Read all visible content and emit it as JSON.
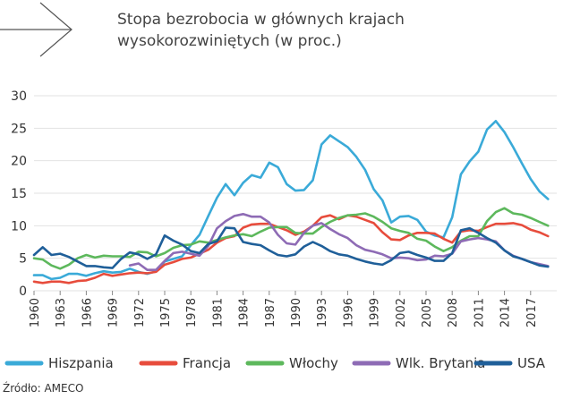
{
  "title": {
    "line1": "Stopa bezrobocia w głównych krajach",
    "line2": "wysokorozwiniętych (w proc.)"
  },
  "source": "Źródło: AMECO",
  "chart_data": {
    "type": "line",
    "title": "Stopa bezrobocia w głównych krajach wysokorozwiniętych (w proc.)",
    "xlabel": "",
    "ylabel": "",
    "ylim": [
      0,
      30
    ],
    "yticks": [
      0,
      5,
      10,
      15,
      20,
      25,
      30
    ],
    "xlim": [
      1960,
      2020
    ],
    "xticks": [
      1960,
      1963,
      1966,
      1969,
      1972,
      1975,
      1978,
      1981,
      1984,
      1987,
      1990,
      1993,
      1996,
      1999,
      2002,
      2005,
      2008,
      2011,
      2014,
      2017
    ],
    "grid": "horizontal",
    "legend_position": "bottom",
    "x": [
      1960,
      1961,
      1962,
      1963,
      1964,
      1965,
      1966,
      1967,
      1968,
      1969,
      1970,
      1971,
      1972,
      1973,
      1974,
      1975,
      1976,
      1977,
      1978,
      1979,
      1980,
      1981,
      1982,
      1983,
      1984,
      1985,
      1986,
      1987,
      1988,
      1989,
      1990,
      1991,
      1992,
      1993,
      1994,
      1995,
      1996,
      1997,
      1998,
      1999,
      2000,
      2001,
      2002,
      2003,
      2004,
      2005,
      2006,
      2007,
      2008,
      2009,
      2010,
      2011,
      2012,
      2013,
      2014,
      2015,
      2016,
      2017,
      2018,
      2019
    ],
    "series": [
      {
        "name": "Hiszpania",
        "color": "#3AAAD8",
        "values": [
          2.4,
          2.4,
          1.8,
          2.0,
          2.6,
          2.6,
          2.3,
          2.7,
          3.0,
          2.8,
          2.9,
          3.4,
          2.9,
          2.6,
          3.0,
          4.5,
          4.9,
          5.3,
          7.0,
          8.6,
          11.5,
          14.3,
          16.4,
          14.7,
          16.6,
          17.8,
          17.4,
          19.7,
          19.0,
          16.4,
          15.4,
          15.5,
          17.0,
          22.5,
          23.9,
          23.0,
          22.1,
          20.6,
          18.6,
          15.6,
          13.9,
          10.5,
          11.4,
          11.5,
          10.9,
          9.1,
          8.5,
          8.2,
          11.3,
          17.9,
          19.9,
          21.4,
          24.8,
          26.1,
          24.4,
          22.1,
          19.6,
          17.2,
          15.3,
          14.1
        ]
      },
      {
        "name": "Francja",
        "color": "#E74C3C",
        "values": [
          1.4,
          1.2,
          1.4,
          1.4,
          1.2,
          1.5,
          1.6,
          2.0,
          2.6,
          2.3,
          2.5,
          2.7,
          2.8,
          2.7,
          2.9,
          4.0,
          4.4,
          4.9,
          5.1,
          5.7,
          6.3,
          7.4,
          8.1,
          8.4,
          9.7,
          10.2,
          10.3,
          10.3,
          9.8,
          9.3,
          8.6,
          9.1,
          10.0,
          11.3,
          11.6,
          11.0,
          11.6,
          11.4,
          10.9,
          10.4,
          9.0,
          7.9,
          7.8,
          8.5,
          8.9,
          8.9,
          8.8,
          8.0,
          7.4,
          9.1,
          9.3,
          9.2,
          9.8,
          10.3,
          10.3,
          10.4,
          10.1,
          9.4,
          9.0,
          8.4
        ]
      },
      {
        "name": "Włochy",
        "color": "#5DB85C",
        "values": [
          5.0,
          4.8,
          3.9,
          3.4,
          4.0,
          5.0,
          5.5,
          5.1,
          5.4,
          5.3,
          5.3,
          5.2,
          6.0,
          5.9,
          5.3,
          5.8,
          6.6,
          7.0,
          7.1,
          7.6,
          7.4,
          7.8,
          8.2,
          8.5,
          8.7,
          8.4,
          9.1,
          9.7,
          9.8,
          9.8,
          8.9,
          8.8,
          8.8,
          9.8,
          10.6,
          11.2,
          11.6,
          11.7,
          11.9,
          11.4,
          10.6,
          9.6,
          9.2,
          8.9,
          8.0,
          7.7,
          6.8,
          6.1,
          6.7,
          7.7,
          8.4,
          8.4,
          10.7,
          12.1,
          12.7,
          11.9,
          11.7,
          11.2,
          10.6,
          10.0
        ]
      },
      {
        "name": "Wlk. Brytania",
        "color": "#8E6BB5",
        "values": [
          null,
          null,
          null,
          null,
          null,
          null,
          null,
          null,
          null,
          null,
          null,
          3.9,
          4.2,
          3.2,
          3.2,
          4.6,
          5.8,
          6.0,
          5.7,
          5.4,
          6.9,
          9.6,
          10.7,
          11.5,
          11.8,
          11.4,
          11.4,
          10.5,
          8.6,
          7.3,
          7.1,
          8.9,
          10.0,
          10.4,
          9.5,
          8.7,
          8.1,
          7.0,
          6.3,
          6.0,
          5.6,
          5.0,
          5.1,
          5.0,
          4.7,
          4.8,
          5.4,
          5.3,
          5.7,
          7.6,
          7.9,
          8.1,
          7.9,
          7.6,
          6.2,
          5.4,
          4.9,
          4.4,
          4.1,
          3.8
        ]
      },
      {
        "name": "USA",
        "color": "#1F5F99",
        "values": [
          5.5,
          6.7,
          5.5,
          5.7,
          5.2,
          4.5,
          3.8,
          3.8,
          3.6,
          3.5,
          4.9,
          5.9,
          5.6,
          4.9,
          5.6,
          8.5,
          7.7,
          7.1,
          6.1,
          5.8,
          7.2,
          7.6,
          9.7,
          9.6,
          7.5,
          7.2,
          7.0,
          6.2,
          5.5,
          5.3,
          5.6,
          6.8,
          7.5,
          6.9,
          6.1,
          5.6,
          5.4,
          4.9,
          4.5,
          4.2,
          4.0,
          4.7,
          5.8,
          6.0,
          5.5,
          5.1,
          4.6,
          4.6,
          5.8,
          9.3,
          9.6,
          8.9,
          8.1,
          7.4,
          6.2,
          5.3,
          4.9,
          4.4,
          3.9,
          3.7
        ]
      }
    ]
  }
}
